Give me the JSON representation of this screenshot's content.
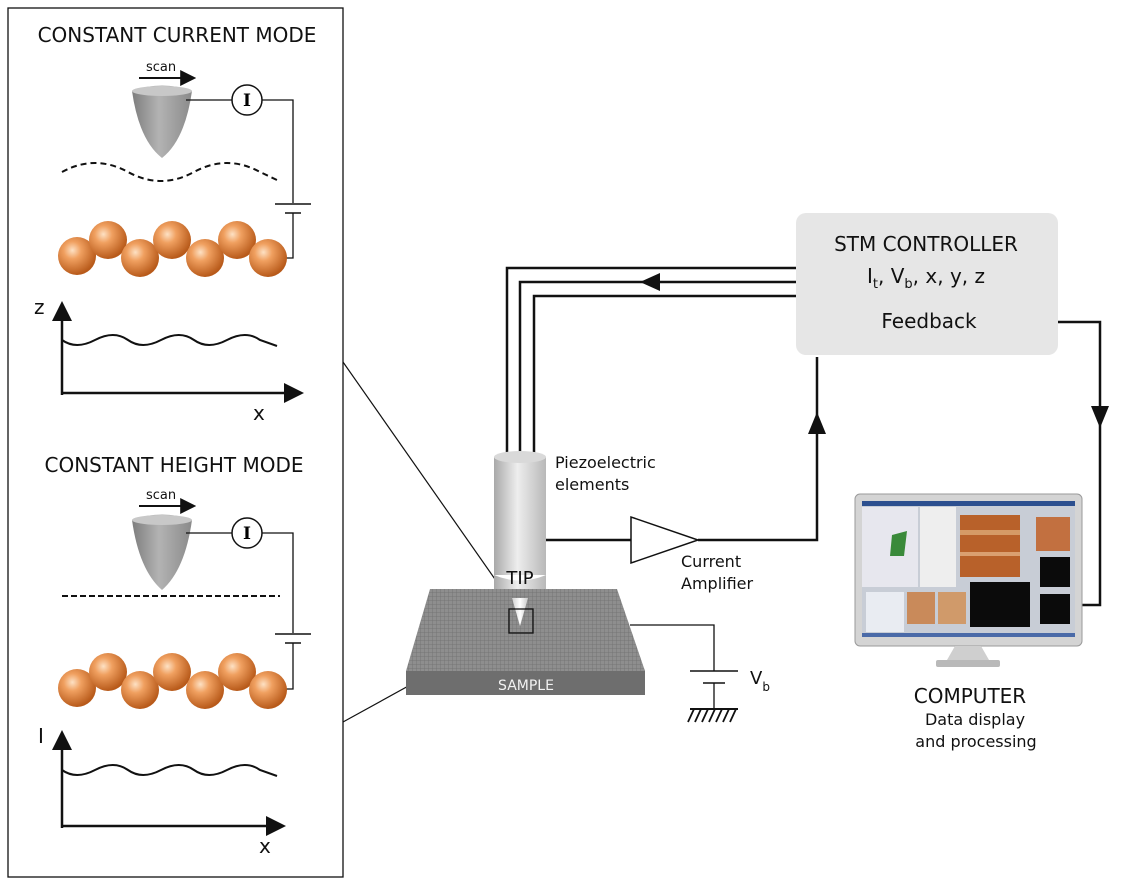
{
  "left_panel": {
    "constant_current": {
      "title": "CONSTANT CURRENT MODE",
      "scan_label": "scan",
      "current_symbol": "I",
      "graph_y_label": "z",
      "graph_x_label": "x"
    },
    "constant_height": {
      "title": "CONSTANT HEIGHT MODE",
      "scan_label": "scan",
      "current_symbol": "I",
      "graph_y_label": "I",
      "graph_x_label": "x"
    }
  },
  "controller": {
    "title": "STM CONTROLLER",
    "params": {
      "i": "I",
      "i_sub": "t",
      "sep1": ", ",
      "v": "V",
      "v_sub": "b",
      "rest": ", x, y, z"
    },
    "feedback": "Feedback"
  },
  "piezo": {
    "line1": "Piezoelectric",
    "line2": "elements"
  },
  "tip_label": "TIP",
  "amplifier": {
    "line1": "Current",
    "line2": "Amplifier"
  },
  "sample_label": "SAMPLE",
  "bias": {
    "symbol": "V",
    "sub": "b"
  },
  "computer": {
    "title": "COMPUTER",
    "line1": "Data display",
    "line2": "and processing"
  },
  "colors": {
    "atom": "#e07c2e",
    "controller_box": "#e6e6e6",
    "sample_top": "#8c8c8c",
    "sample_side": "#6e6e6e",
    "tip_gray": "#9a9a9a"
  }
}
